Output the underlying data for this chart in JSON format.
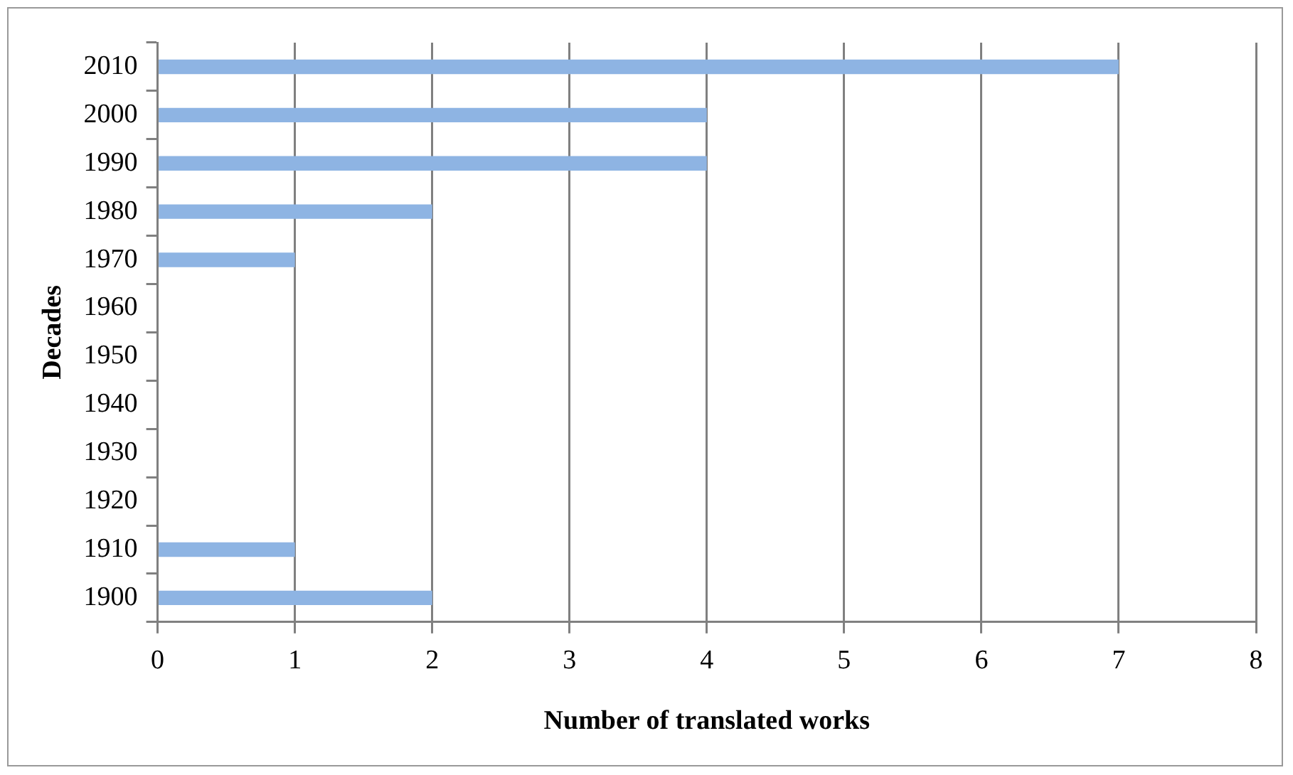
{
  "chart_data": {
    "type": "bar",
    "orientation": "horizontal",
    "xlabel": "Number of translated works",
    "ylabel": "Decades",
    "categories": [
      "2010",
      "2000",
      "1990",
      "1980",
      "1970",
      "1960",
      "1950",
      "1940",
      "1930",
      "1920",
      "1910",
      "1900"
    ],
    "values": [
      7,
      4,
      4,
      2,
      1,
      0,
      0,
      0,
      0,
      0,
      1,
      2
    ],
    "color": "#8eb4e3",
    "xlim": [
      0,
      8
    ],
    "xticks": [
      0,
      1,
      2,
      3,
      4,
      5,
      6,
      7,
      8
    ],
    "grid": "x",
    "legend": false
  }
}
